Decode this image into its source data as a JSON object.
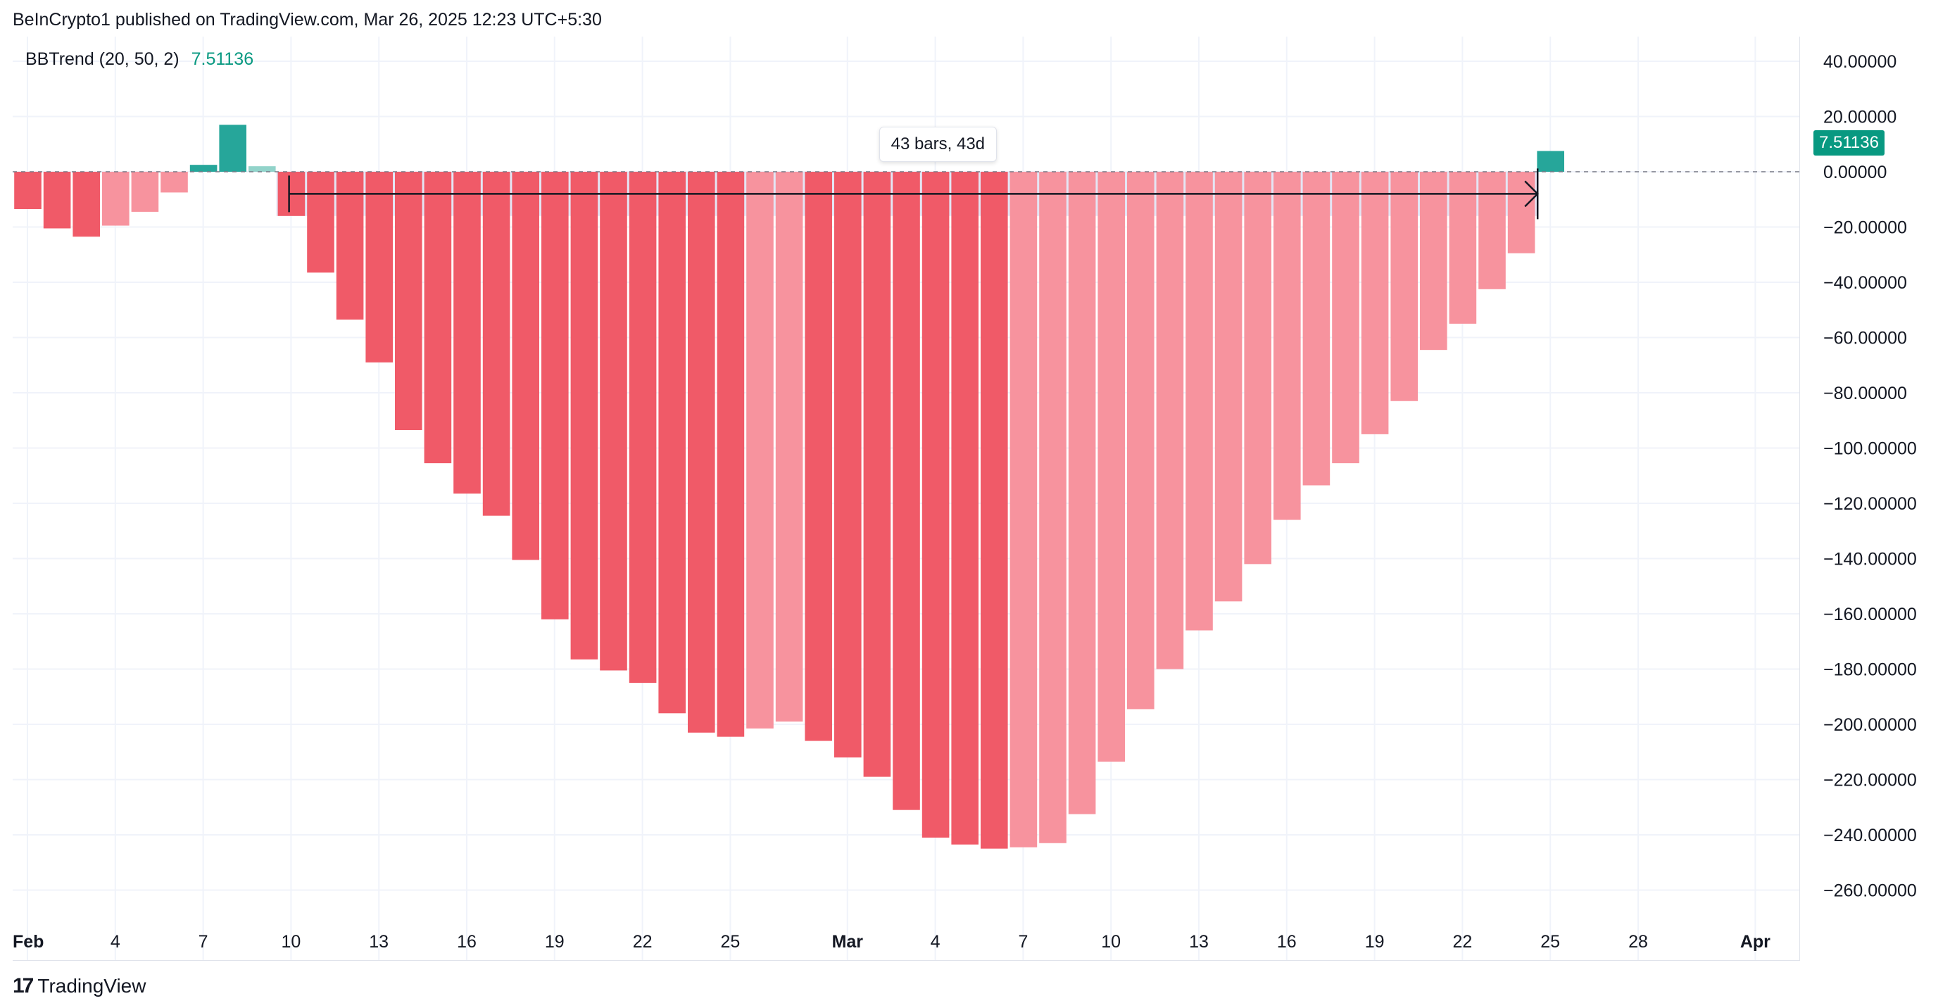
{
  "header": {
    "published_text": "BeInCrypto1 published on TradingView.com, Mar 26, 2025 12:23 UTC+5:30"
  },
  "legend": {
    "indicator": "BBTrend (20, 50, 2)",
    "value": "7.51136"
  },
  "measure": {
    "label": "43 bars, 43d"
  },
  "last_value_tag": "7.51136",
  "footer": {
    "brand": "TradingView"
  },
  "colors": {
    "up_strong": "#26a69a",
    "up_weak": "#92d3ca",
    "down_strong": "#f05a68",
    "down_weak": "#f7939e",
    "measure_fill": "#dfe1f2",
    "measure_line": "#131722",
    "grid": "#f0f3fa",
    "axis_text": "#131722"
  },
  "chart_data": {
    "type": "bar",
    "title": "BBTrend (20, 50, 2)",
    "x_start": "2025-02-01",
    "x_ticks": [
      "Feb",
      "4",
      "7",
      "10",
      "13",
      "16",
      "19",
      "22",
      "25",
      "Mar",
      "4",
      "7",
      "10",
      "13",
      "16",
      "19",
      "22",
      "25",
      "28",
      "Apr"
    ],
    "y_ticks": [
      "40.00000",
      "20.00000",
      "0.00000",
      "−20.00000",
      "−40.00000",
      "−60.00000",
      "−80.00000",
      "−100.00000",
      "−120.00000",
      "−140.00000",
      "−160.00000",
      "−180.00000",
      "−200.00000",
      "−220.00000",
      "−240.00000",
      "−260.00000"
    ],
    "ylim": [
      -263,
      47
    ],
    "series": [
      {
        "values": [
          -13.5,
          -20.5,
          -23.5,
          -19.5,
          -14.5,
          -7.5,
          2.5,
          17,
          2,
          -16,
          -36.5,
          -53.5,
          -69,
          -93.5,
          -105.5,
          -116.5,
          -124.5,
          -140.5,
          -162,
          -176.5,
          -180.5,
          -185,
          -196,
          -203,
          -204.5,
          -201.5,
          -199,
          -206,
          -212,
          -219,
          -231,
          -241,
          -243.5,
          -245,
          -244.5,
          -243,
          -232.5,
          -213.5,
          -194.5,
          -180,
          -166,
          -155.5,
          -142,
          -126,
          -113.5,
          -105.5,
          -95,
          -83,
          -64.5,
          -55,
          -42.5,
          -29.5,
          7.51136
        ],
        "color_class": [
          "ds",
          "ds",
          "ds",
          "dw",
          "dw",
          "dw",
          "us",
          "us",
          "uw",
          "ds",
          "ds",
          "ds",
          "ds",
          "ds",
          "ds",
          "ds",
          "ds",
          "ds",
          "ds",
          "ds",
          "ds",
          "ds",
          "ds",
          "ds",
          "ds",
          "dw",
          "dw",
          "ds",
          "ds",
          "ds",
          "ds",
          "ds",
          "ds",
          "ds",
          "dw",
          "dw",
          "dw",
          "dw",
          "dw",
          "dw",
          "dw",
          "dw",
          "dw",
          "dw",
          "dw",
          "dw",
          "dw",
          "dw",
          "dw",
          "dw",
          "dw",
          "dw",
          "us"
        ]
      }
    ],
    "measure_range": {
      "from_index": 9,
      "to_index": 52,
      "value": -8
    },
    "grid": true
  }
}
